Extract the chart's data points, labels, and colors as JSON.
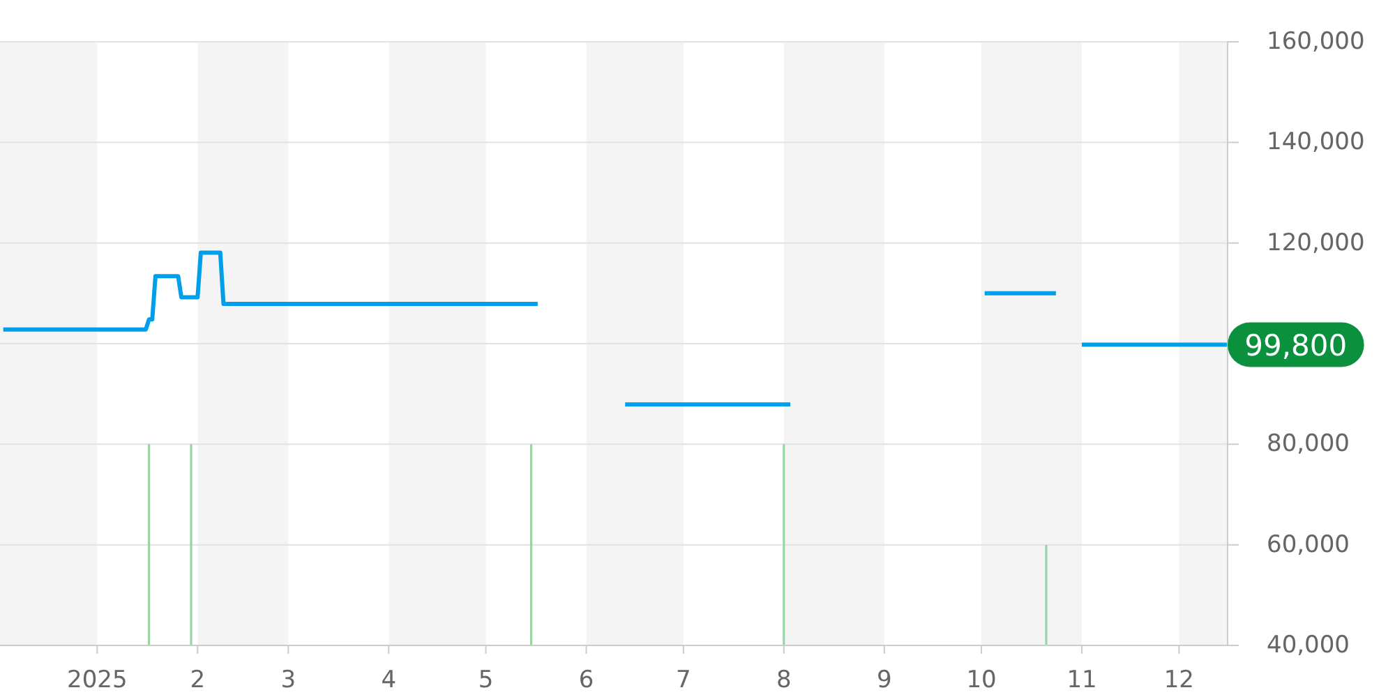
{
  "chart_data": {
    "type": "line",
    "xlim": [
      "2024-12-02",
      "2025-12-16"
    ],
    "xticks": [
      {
        "value": "2025-01-01",
        "label": "2025"
      },
      {
        "value": "2025-02-01",
        "label": "2"
      },
      {
        "value": "2025-03-01",
        "label": "3"
      },
      {
        "value": "2025-04-01",
        "label": "4"
      },
      {
        "value": "2025-05-01",
        "label": "5"
      },
      {
        "value": "2025-06-01",
        "label": "6"
      },
      {
        "value": "2025-07-01",
        "label": "7"
      },
      {
        "value": "2025-08-01",
        "label": "8"
      },
      {
        "value": "2025-09-01",
        "label": "9"
      },
      {
        "value": "2025-10-01",
        "label": "10"
      },
      {
        "value": "2025-11-01",
        "label": "11"
      },
      {
        "value": "2025-12-01",
        "label": "12"
      }
    ],
    "ylim": [
      40000,
      160000
    ],
    "yticks": [
      {
        "value": 40000,
        "label": "40,000"
      },
      {
        "value": 60000,
        "label": "60,000"
      },
      {
        "value": 80000,
        "label": "80,000"
      },
      {
        "value": 100000,
        "label": null
      },
      {
        "value": 120000,
        "label": "120,000"
      },
      {
        "value": 140000,
        "label": "140,000"
      },
      {
        "value": 160000,
        "label": "160,000"
      }
    ],
    "grid": "y",
    "bands": [
      {
        "axis": "x",
        "from": "2024-12-02",
        "to": "2025-01-01",
        "color": "#f4f4f4"
      },
      {
        "axis": "x",
        "from": "2025-02-01",
        "to": "2025-03-01",
        "color": "#f4f4f4"
      },
      {
        "axis": "x",
        "from": "2025-04-01",
        "to": "2025-05-01",
        "color": "#f4f4f4"
      },
      {
        "axis": "x",
        "from": "2025-06-01",
        "to": "2025-07-01",
        "color": "#f4f4f4"
      },
      {
        "axis": "x",
        "from": "2025-08-01",
        "to": "2025-09-01",
        "color": "#f4f4f4"
      },
      {
        "axis": "x",
        "from": "2025-10-01",
        "to": "2025-11-01",
        "color": "#f4f4f4"
      },
      {
        "axis": "x",
        "from": "2025-12-01",
        "to": "2025-12-16",
        "color": "#f4f4f4"
      }
    ],
    "series": [
      {
        "type": "bar",
        "color": "#99d4a6",
        "x": [
          "2025-01-17",
          "2025-01-30",
          "2025-05-15",
          "2025-08-01",
          "2025-10-21"
        ],
        "values": [
          80000,
          80000,
          80000,
          80000,
          60000
        ]
      },
      {
        "color": "#009fe8",
        "x": [
          "2024-12-03",
          "2025-01-16",
          "2025-01-17",
          "2025-01-18",
          "2025-01-19",
          "2025-01-26",
          "2025-01-27",
          "2025-02-01",
          "2025-02-02",
          "2025-02-08",
          "2025-02-09",
          "2025-05-17",
          "2025-06-01",
          "2025-06-13",
          "2025-08-03",
          "2025-09-01",
          "2025-10-02",
          "2025-10-24",
          "2025-10-27",
          "2025-11-01",
          "2025-12-16"
        ],
        "values": [
          102800,
          102800,
          104800,
          104800,
          113400,
          113400,
          109200,
          109200,
          118100,
          118100,
          107900,
          107900,
          null,
          87900,
          87900,
          null,
          110000,
          110000,
          null,
          99800,
          99800
        ]
      }
    ],
    "annotations": [
      {
        "text": "99,800",
        "x": "2025-12-16",
        "y": 99800
      }
    ]
  }
}
